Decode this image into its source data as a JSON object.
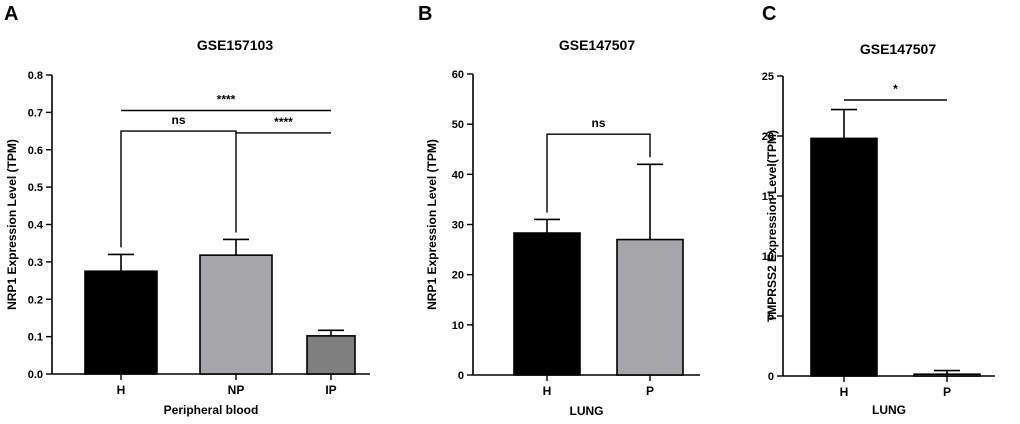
{
  "chart_data": [
    {
      "panel": "A",
      "type": "bar",
      "title": "GSE157103",
      "xlabel": "Peripheral blood",
      "ylabel": "NRP1 Expression Level (TPM)",
      "categories": [
        "H",
        "NP",
        "IP"
      ],
      "values": [
        0.275,
        0.318,
        0.102
      ],
      "errors": [
        0.045,
        0.042,
        0.015
      ],
      "colors": [
        "#000000",
        "#a6a6aa",
        "#7f7f7f"
      ],
      "ylim": [
        0,
        0.8
      ],
      "yticks": [
        0.0,
        0.1,
        0.2,
        0.3,
        0.4,
        0.5,
        0.6,
        0.7,
        0.8
      ],
      "ytick_labels": [
        "0.0",
        "0.1",
        "0.2",
        "0.3",
        "0.4",
        "0.5",
        "0.6",
        "0.7",
        "0.8"
      ],
      "significance": [
        {
          "from": 0,
          "to": 1,
          "label": "ns",
          "y": 0.65,
          "style": "bracket"
        },
        {
          "from": 1,
          "to": 2,
          "label": "****",
          "y": 0.645,
          "style": "line"
        },
        {
          "from": 0,
          "to": 2,
          "label": "****",
          "y": 0.705,
          "style": "line"
        }
      ]
    },
    {
      "panel": "B",
      "type": "bar",
      "title": "GSE147507",
      "xlabel": "LUNG",
      "ylabel": "NRP1 Expression Level (TPM)",
      "categories": [
        "H",
        "P"
      ],
      "values": [
        28.3,
        27.0
      ],
      "errors": [
        2.7,
        15.0
      ],
      "colors": [
        "#000000",
        "#a6a6aa"
      ],
      "ylim": [
        0,
        60
      ],
      "yticks": [
        0,
        10,
        20,
        30,
        40,
        50,
        60
      ],
      "ytick_labels": [
        "0",
        "10",
        "20",
        "30",
        "40",
        "50",
        "60"
      ],
      "significance": [
        {
          "from": 0,
          "to": 1,
          "label": "ns",
          "y": 48.0,
          "style": "bracket"
        }
      ]
    },
    {
      "panel": "C",
      "type": "bar",
      "title": "GSE147507",
      "xlabel": "LUNG",
      "ylabel": "TMPRSS2 Expression Level(TPM)",
      "categories": [
        "H",
        "P"
      ],
      "values": [
        19.8,
        0.15
      ],
      "errors": [
        2.4,
        0.3
      ],
      "colors": [
        "#000000",
        "#a6a6aa"
      ],
      "ylim": [
        0,
        25
      ],
      "yticks": [
        0,
        5,
        10,
        15,
        20,
        25
      ],
      "ytick_labels": [
        "0",
        "5",
        "10",
        "15",
        "20",
        "25"
      ],
      "significance": [
        {
          "from": 0,
          "to": 1,
          "label": "*",
          "y": 23.0,
          "style": "line"
        }
      ]
    }
  ]
}
